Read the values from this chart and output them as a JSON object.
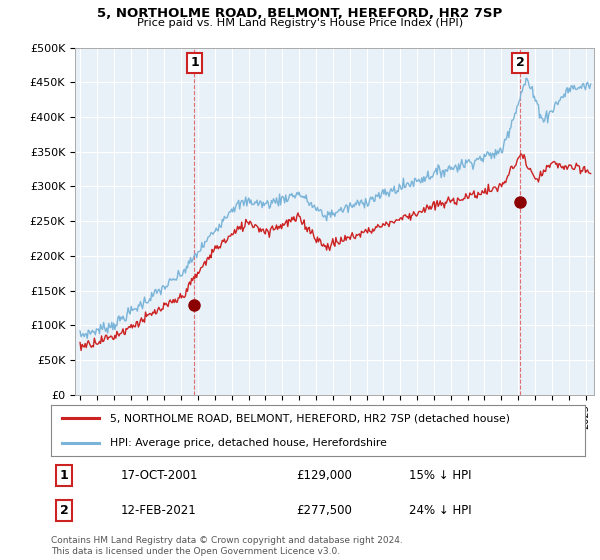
{
  "title1": "5, NORTHOLME ROAD, BELMONT, HEREFORD, HR2 7SP",
  "title2": "Price paid vs. HM Land Registry's House Price Index (HPI)",
  "ylabel_ticks": [
    "£0",
    "£50K",
    "£100K",
    "£150K",
    "£200K",
    "£250K",
    "£300K",
    "£350K",
    "£400K",
    "£450K",
    "£500K"
  ],
  "ytick_vals": [
    0,
    50000,
    100000,
    150000,
    200000,
    250000,
    300000,
    350000,
    400000,
    450000,
    500000
  ],
  "ylim": [
    0,
    500000
  ],
  "xlim_start": 1994.7,
  "xlim_end": 2025.5,
  "hpi_color": "#7ab4d8",
  "price_color": "#cc2222",
  "sale1_date": 2001.79,
  "sale1_price": 129000,
  "sale2_date": 2021.12,
  "sale2_price": 277500,
  "legend_label1": "5, NORTHOLME ROAD, BELMONT, HEREFORD, HR2 7SP (detached house)",
  "legend_label2": "HPI: Average price, detached house, Herefordshire",
  "annotation1_text": "1",
  "annotation2_text": "2",
  "table_row1": [
    "1",
    "17-OCT-2001",
    "£129,000",
    "15% ↓ HPI"
  ],
  "table_row2": [
    "2",
    "12-FEB-2021",
    "£277,500",
    "24% ↓ HPI"
  ],
  "footnote": "Contains HM Land Registry data © Crown copyright and database right 2024.\nThis data is licensed under the Open Government Licence v3.0.",
  "background_color": "#ffffff",
  "chart_bg_color": "#e8f0f8",
  "grid_color": "#ffffff"
}
